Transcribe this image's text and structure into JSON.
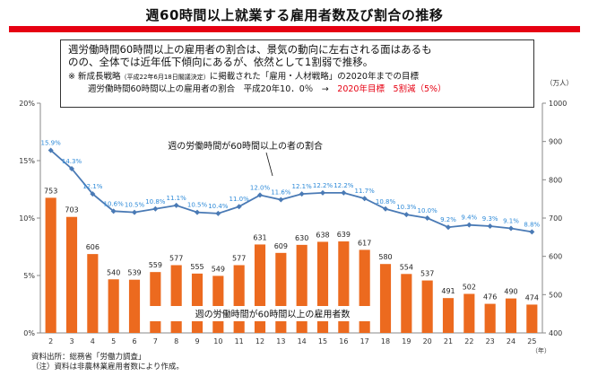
{
  "title": "週60時間以上就業する雇用者数及び割合の推移",
  "summary": {
    "line1": "週労働時間60時間以上の雇用者の割合は、景気の動向に左右される面はあるも",
    "line2": "のの、全体では近年低下傾向にあるが、依然として1割弱で推移。",
    "note1_prefix": "※ 新成長戦略",
    "note1_small": "（平成22年6月18日閣議決定）",
    "note1_suffix": "に掲載された「雇用・人材戦略」の2020年までの目標",
    "note2_prefix": "週労働時間60時間以上の雇用者の割合　平成20年10．0％　→　",
    "note2_target": "2020年目標　5割減（5%）"
  },
  "source": {
    "line1": "資料出所：総務省「労働力調査」",
    "line2": "（注）資料は非農林業雇用者数により作成。"
  },
  "chart_data": {
    "type": "bar+line",
    "xlabel": "（年）",
    "categories": [
      "2",
      "3",
      "4",
      "5",
      "6",
      "7",
      "8",
      "9",
      "10",
      "11",
      "12",
      "13",
      "14",
      "15",
      "16",
      "17",
      "18",
      "19",
      "20",
      "21",
      "22",
      "23",
      "24",
      "25"
    ],
    "bar_series": {
      "name": "週の労働時間が60時間以上の雇用者数",
      "axis": "right",
      "unit": "（万人）",
      "values": [
        753,
        703,
        606,
        540,
        539,
        559,
        577,
        555,
        549,
        577,
        631,
        609,
        630,
        638,
        639,
        617,
        580,
        554,
        537,
        491,
        502,
        476,
        490,
        474
      ],
      "labels": [
        "753",
        "703",
        "606",
        "540",
        "539",
        "559",
        "577",
        "555",
        "549",
        "577",
        "631",
        "609",
        "630",
        "638",
        "639",
        "617",
        "580",
        "554",
        "537",
        "491",
        "502",
        "476",
        "490",
        "474"
      ]
    },
    "line_series": {
      "name": "週の労働時間が60時間以上の者の割合",
      "axis": "left",
      "values": [
        15.9,
        14.3,
        12.1,
        10.6,
        10.5,
        10.8,
        11.1,
        10.5,
        10.4,
        11.0,
        12.0,
        11.6,
        12.1,
        12.2,
        12.2,
        11.7,
        10.8,
        10.3,
        10.0,
        9.2,
        9.4,
        9.3,
        9.1,
        8.8
      ],
      "labels": [
        "15.9%",
        "14.3%",
        "12.1%",
        "10.6%",
        "10.5%",
        "10.8%",
        "11.1%",
        "10.5%",
        "10.4%",
        "11.0%",
        "12.0%",
        "11.6%",
        "12.1%",
        "12.2%",
        "12.2%",
        "11.7%",
        "10.8%",
        "10.3%",
        "10.0%",
        "9.2%",
        "9.4%",
        "9.3%",
        "9.1%",
        "8.8%"
      ]
    },
    "left_axis": {
      "ylim": [
        0,
        20
      ],
      "ticks": [
        0,
        5,
        10,
        15,
        20
      ],
      "tick_labels": [
        "0%",
        "5%",
        "10%",
        "15%",
        "20%"
      ]
    },
    "right_axis": {
      "ylim": [
        400,
        1000
      ],
      "ticks": [
        400,
        500,
        600,
        700,
        800,
        900,
        1000
      ],
      "tick_labels": [
        "400",
        "500",
        "600",
        "700",
        "800",
        "900",
        "1000"
      ]
    },
    "bar_color": "#ec6a1f",
    "line_color": "#4a7ab5",
    "label_color": "#2e8ad8",
    "grid": false
  }
}
